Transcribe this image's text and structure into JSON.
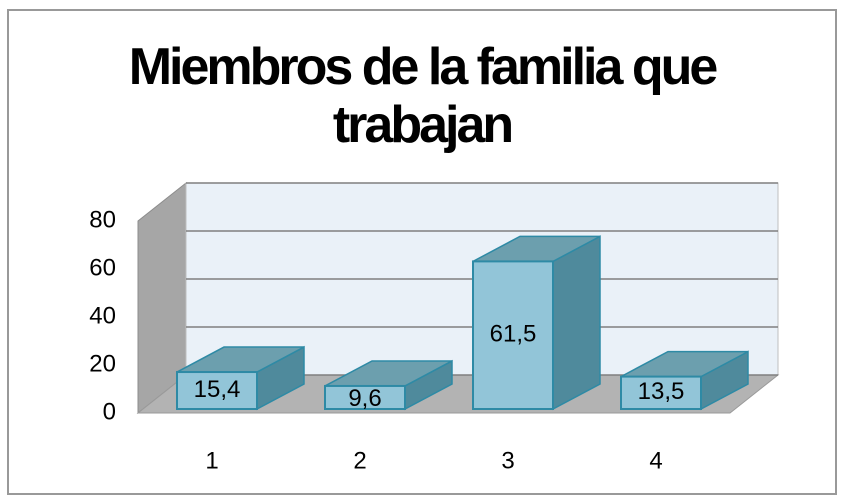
{
  "chart_data": {
    "type": "bar",
    "title": "Miembros de la familia que trabajan",
    "categories": [
      "1",
      "2",
      "3",
      "4"
    ],
    "values": [
      15.4,
      9.6,
      61.5,
      13.5
    ],
    "value_labels": [
      "15,4",
      "9,6",
      "61,5",
      "13,5"
    ],
    "color": "#92c5d8",
    "ylim": [
      0,
      80
    ],
    "yticks": [
      0,
      20,
      40,
      60,
      80
    ],
    "grid": true
  }
}
